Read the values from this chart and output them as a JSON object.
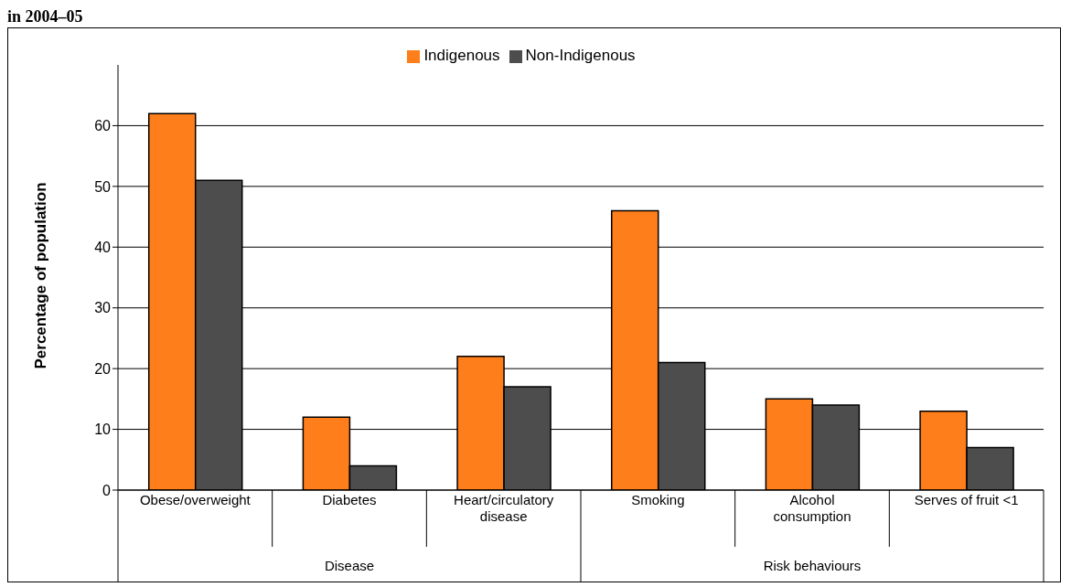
{
  "chart_data": {
    "type": "bar",
    "title": "in 2004–05",
    "ylabel": "Percentage of population",
    "categories": [
      "Obese/overweight",
      "Diabetes",
      "Heart/circulatory disease",
      "Smoking",
      "Alcohol consumption",
      "Serves of fruit <1"
    ],
    "series": [
      {
        "name": "Indigenous",
        "color": "#fd7e1a",
        "values": [
          62,
          12,
          22,
          46,
          15,
          13
        ]
      },
      {
        "name": "Non-Indigenous",
        "color": "#4d4d4d",
        "values": [
          51,
          4,
          17,
          21,
          14,
          7
        ]
      }
    ],
    "annotations": [
      "Disease",
      "Risk behaviours"
    ],
    "ylim": [
      0,
      70
    ],
    "yticks": [
      0,
      10,
      20,
      30,
      40,
      50,
      60
    ],
    "grid": "y",
    "legend": "top"
  }
}
